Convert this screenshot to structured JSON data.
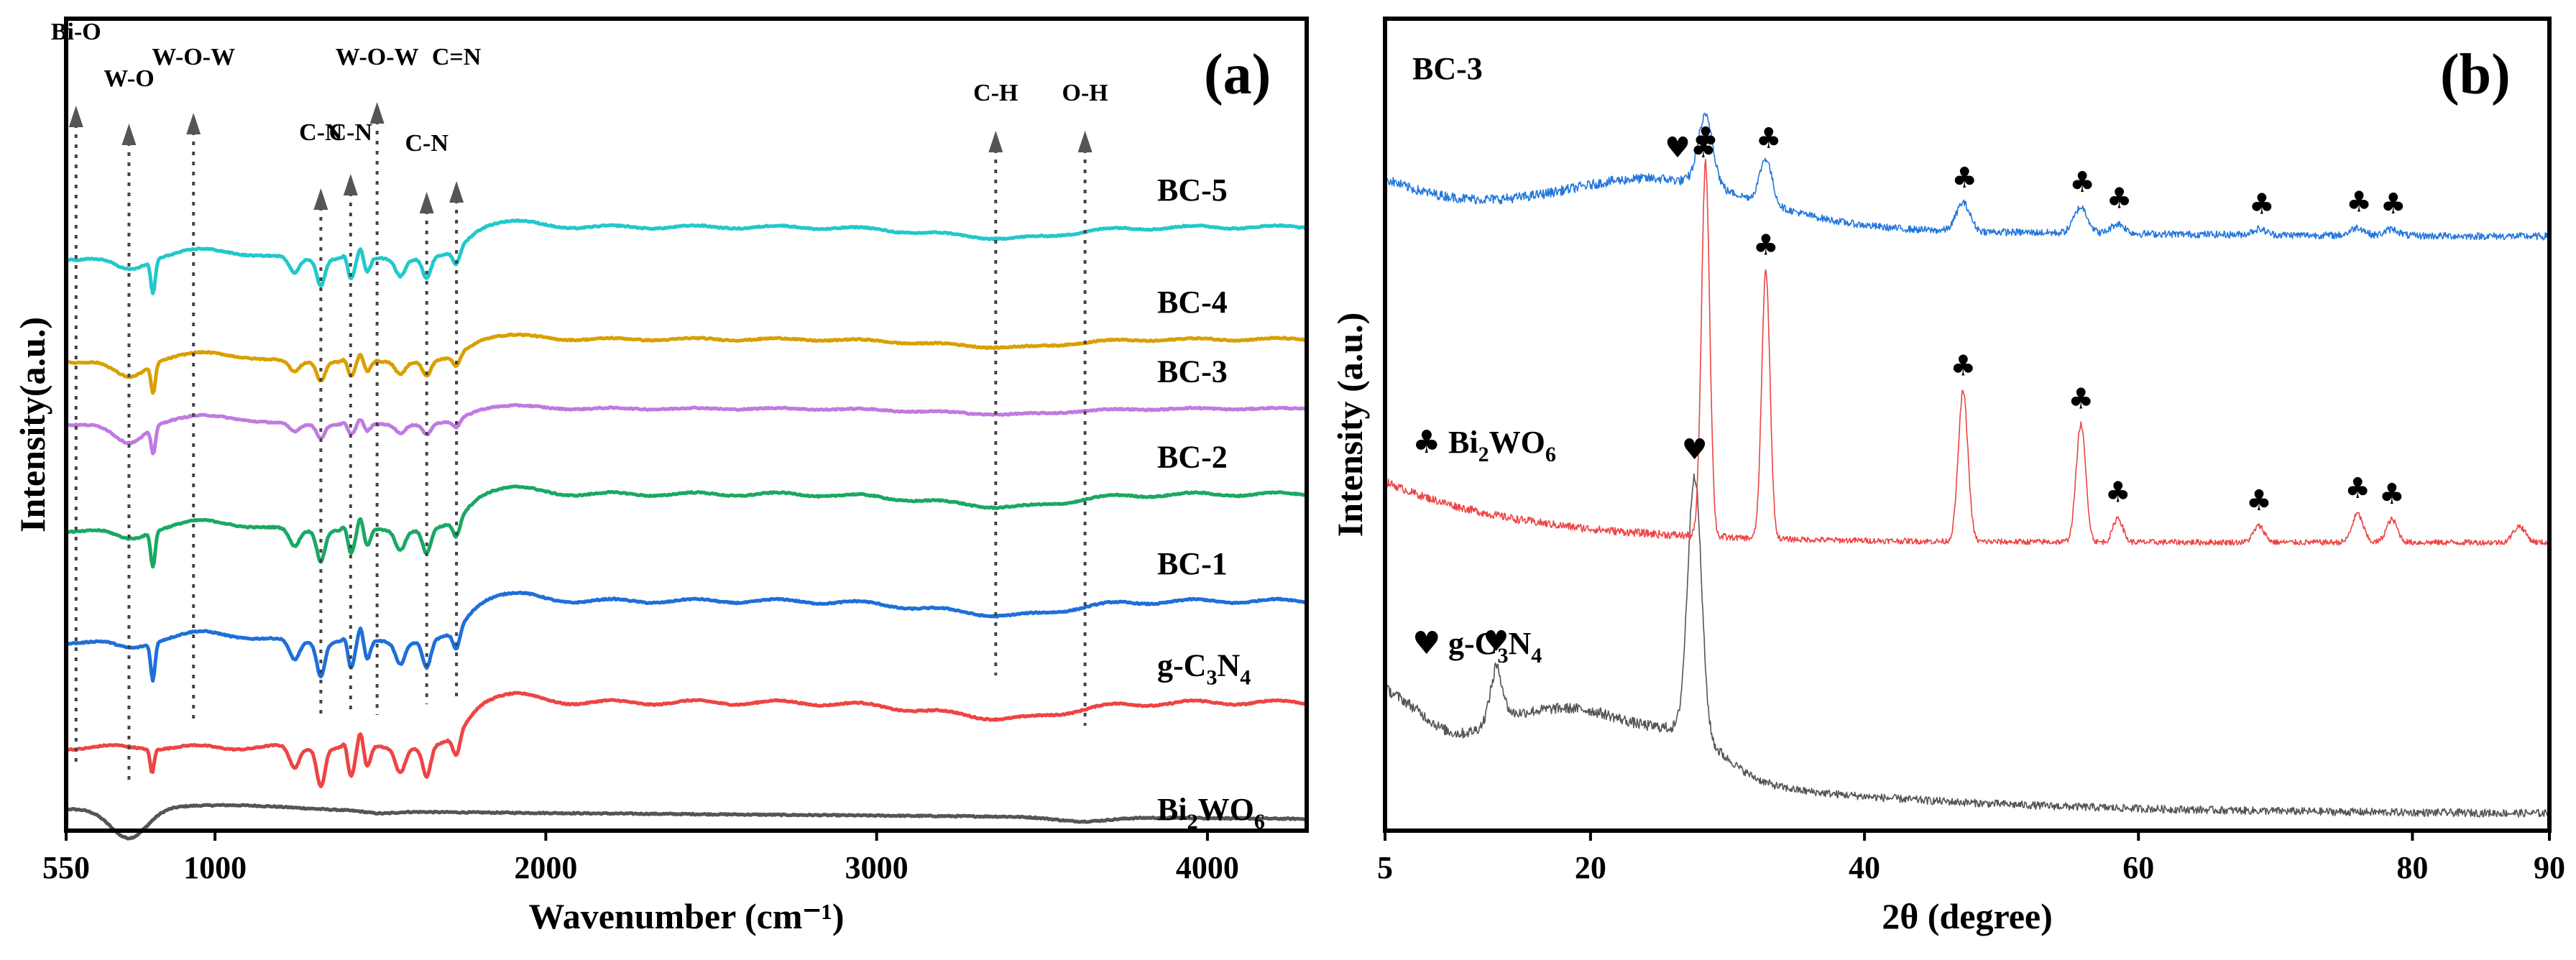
{
  "chart_data": [
    {
      "type": "line",
      "panel_label": "(a)",
      "xlabel": "Wavenumber (cm⁻¹)",
      "ylabel": "Intensity(a.u.)",
      "xlim": [
        550,
        4300
      ],
      "ylim": [
        0,
        7.6
      ],
      "x_ticks": [
        550,
        1000,
        2000,
        3000,
        4000
      ],
      "x_tick_labels": [
        "550",
        "1000",
        "2000",
        "3000",
        "4000"
      ],
      "series": [
        {
          "name": "Bi2WO6",
          "label_main": "Bi",
          "label_sub1": "2",
          "label_mid": "WO",
          "label_sub2": "6",
          "color": "#555555",
          "offset": 0.2
        },
        {
          "name": "g-C3N4",
          "label_main": "g-C",
          "label_sub1": "3",
          "label_mid": "N",
          "label_sub2": "4",
          "color": "#ee4444",
          "offset": 1.2
        },
        {
          "name": "BC-1",
          "label_main": "BC-1",
          "color": "#1f6fd8",
          "offset": 2.15
        },
        {
          "name": "BC-2",
          "label_main": "BC-2",
          "color": "#1aa864",
          "offset": 3.15
        },
        {
          "name": "BC-3",
          "label_main": "BC-3",
          "color": "#c07ae0",
          "offset": 3.95
        },
        {
          "name": "BC-4",
          "label_main": "BC-4",
          "color": "#d9a000",
          "offset": 4.6
        },
        {
          "name": "BC-5",
          "label_main": "BC-5",
          "color": "#22c8cc",
          "offset": 5.65
        }
      ],
      "band_markers": [
        {
          "label": "Bi-O",
          "x": 580
        },
        {
          "label": "W-O",
          "x": 740
        },
        {
          "label": "W-O-W",
          "x": 935
        },
        {
          "label": "C-N",
          "x": 1320
        },
        {
          "label": "C-N",
          "x": 1410
        },
        {
          "label": "W-O-W",
          "x": 1490
        },
        {
          "label": "C-N",
          "x": 1640
        },
        {
          "label": "C=N",
          "x": 1730
        },
        {
          "label": "C-H",
          "x": 3360
        },
        {
          "label": "O-H",
          "x": 3630
        }
      ],
      "colors": {
        "axis": "#000000",
        "guide": "#444444",
        "arrow": "#555555"
      }
    },
    {
      "type": "line",
      "panel_label": "(b)",
      "xlabel": "2θ (degree)",
      "ylabel": "Intensity (a.u.)",
      "xlim": [
        5,
        90
      ],
      "ylim": [
        0,
        10
      ],
      "x_ticks": [
        5,
        20,
        40,
        60,
        80,
        90
      ],
      "x_tick_labels": [
        "5",
        "20",
        "40",
        "60",
        "80",
        "90"
      ],
      "series": [
        {
          "name": "g-C3N4",
          "color": "#555555",
          "offset": 0.2,
          "peaks": [
            {
              "x": 13.1,
              "height": 0.6,
              "width": 0.45
            },
            {
              "x": 27.6,
              "height": 3.2,
              "width": 0.5
            }
          ]
        },
        {
          "name": "Bi2WO6",
          "color": "#ee4444",
          "offset": 3.5,
          "peaks": [
            {
              "x": 28.4,
              "height": 4.6,
              "width": 0.3
            },
            {
              "x": 32.8,
              "height": 3.3,
              "width": 0.3
            },
            {
              "x": 47.2,
              "height": 1.85,
              "width": 0.35
            },
            {
              "x": 55.8,
              "height": 1.45,
              "width": 0.35
            },
            {
              "x": 58.5,
              "height": 0.3,
              "width": 0.35
            },
            {
              "x": 68.8,
              "height": 0.2,
              "width": 0.4
            },
            {
              "x": 76.0,
              "height": 0.35,
              "width": 0.4
            },
            {
              "x": 78.5,
              "height": 0.28,
              "width": 0.4
            },
            {
              "x": 87.8,
              "height": 0.2,
              "width": 0.45
            }
          ]
        },
        {
          "name": "BC-3",
          "color": "#2277dd",
          "offset": 7.3,
          "label": "BC-3",
          "peaks": [
            {
              "x": 28.4,
              "height": 0.85,
              "width": 0.55
            },
            {
              "x": 32.8,
              "height": 0.55,
              "width": 0.45
            },
            {
              "x": 47.2,
              "height": 0.35,
              "width": 0.5
            },
            {
              "x": 55.8,
              "height": 0.32,
              "width": 0.5
            },
            {
              "x": 58.5,
              "height": 0.12,
              "width": 0.5
            },
            {
              "x": 68.8,
              "height": 0.07,
              "width": 0.5
            },
            {
              "x": 76.0,
              "height": 0.1,
              "width": 0.5
            },
            {
              "x": 78.5,
              "height": 0.08,
              "width": 0.5
            }
          ]
        }
      ],
      "legend": [
        {
          "symbol": "♣",
          "label_main": "Bi",
          "label_sub1": "2",
          "label_mid": "WO",
          "label_sub2": "6"
        },
        {
          "symbol": "♥",
          "label_main": "g-C",
          "label_sub1": "3",
          "label_mid": "N",
          "label_sub2": "4"
        }
      ],
      "symbols": [
        {
          "glyph": "♥♣",
          "x": 27.3,
          "on": "BC-3"
        },
        {
          "glyph": "♣",
          "x": 33.0,
          "on": "BC-3"
        },
        {
          "glyph": "♣",
          "x": 47.3,
          "on": "BC-3"
        },
        {
          "glyph": "♣",
          "x": 55.9,
          "on": "BC-3"
        },
        {
          "glyph": "♣",
          "x": 58.6,
          "on": "BC-3"
        },
        {
          "glyph": "♣",
          "x": 69.0,
          "on": "BC-3"
        },
        {
          "glyph": "♣",
          "x": 76.1,
          "on": "BC-3"
        },
        {
          "glyph": "♣",
          "x": 78.6,
          "on": "BC-3"
        },
        {
          "glyph": "♣",
          "x": 28.4,
          "on": "Bi2WO6"
        },
        {
          "glyph": "♣",
          "x": 32.8,
          "on": "Bi2WO6"
        },
        {
          "glyph": "♣",
          "x": 47.2,
          "on": "Bi2WO6"
        },
        {
          "glyph": "♣",
          "x": 55.8,
          "on": "Bi2WO6"
        },
        {
          "glyph": "♣",
          "x": 58.5,
          "on": "Bi2WO6"
        },
        {
          "glyph": "♣",
          "x": 68.8,
          "on": "Bi2WO6"
        },
        {
          "glyph": "♣",
          "x": 76.0,
          "on": "Bi2WO6"
        },
        {
          "glyph": "♣",
          "x": 78.5,
          "on": "Bi2WO6"
        },
        {
          "glyph": "♥",
          "x": 27.6,
          "on": "g-C3N4"
        },
        {
          "glyph": "♥",
          "x": 13.1,
          "on": "g-C3N4"
        }
      ]
    }
  ]
}
